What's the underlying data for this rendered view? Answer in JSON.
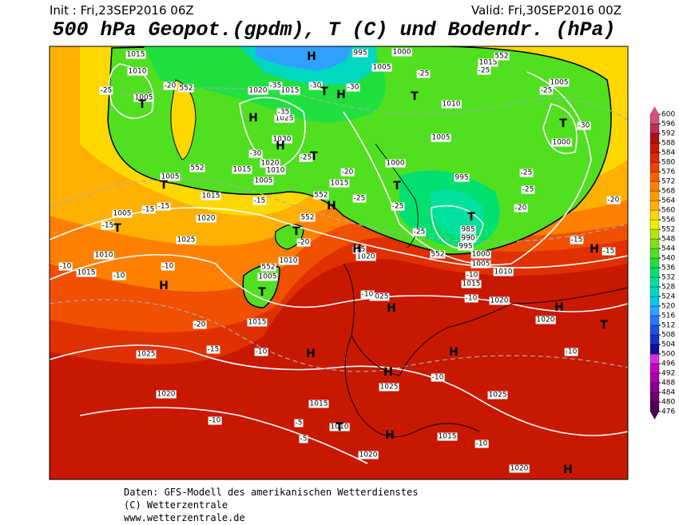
{
  "header": {
    "init": "Init : Fri,23SEP2016 06Z",
    "valid": "Valid: Fri,30SEP2016 00Z",
    "title": "500 hPa Geopot.(gpdm), T (C) und Bodendr. (hPa)"
  },
  "footer": {
    "source": "Daten: GFS-Modell des amerikanischen Wetterdienstes",
    "copyright": "(C) Wetterzentrale",
    "url": "www.wetterzentrale.de"
  },
  "colorbar": {
    "ticks": [
      476,
      480,
      484,
      488,
      492,
      496,
      500,
      504,
      508,
      512,
      516,
      520,
      524,
      528,
      532,
      536,
      540,
      544,
      548,
      552,
      556,
      560,
      564,
      568,
      572,
      576,
      580,
      584,
      588,
      592,
      596,
      600
    ],
    "colors": [
      "#4b0050",
      "#6a0070",
      "#8a0090",
      "#a800b0",
      "#c400c8",
      "#d830e0",
      "#1010a0",
      "#1830c8",
      "#2050e8",
      "#2878ff",
      "#30a0ff",
      "#00c8e8",
      "#00d8c0",
      "#00e0a0",
      "#00e070",
      "#20e040",
      "#50e020",
      "#80e020",
      "#b0e800",
      "#f0f000",
      "#ffd800",
      "#ffb000",
      "#ff9800",
      "#ff8000",
      "#f86000",
      "#f04000",
      "#e02800",
      "#c81800",
      "#b01010",
      "#c03050",
      "#d85080"
    ]
  },
  "isobar_labels": [
    "1015",
    "1010",
    "1005",
    "1020",
    "1015",
    "1025",
    "1030",
    "1020",
    "1010",
    "1015",
    "1005",
    "1005",
    "1015",
    "1020",
    "1005",
    "1025",
    "1010",
    "1015",
    "995",
    "1005",
    "1000",
    "1015",
    "1010",
    "1005",
    "1000",
    "1015",
    "995",
    "1005",
    "1000",
    "985",
    "990",
    "995",
    "1000",
    "1005",
    "1010",
    "1015",
    "1020",
    "1020",
    "1025",
    "1010",
    "1005",
    "1015",
    "1025",
    "1020",
    "1015",
    "1010",
    "1020",
    "1025",
    "1025",
    "1015",
    "1020",
    "1020"
  ],
  "temperature_labels": [
    "-25",
    "-20",
    "-35",
    "-30",
    "-30",
    "-25",
    "-25",
    "-25",
    "-30",
    "-35",
    "-30",
    "-25",
    "-20",
    "-25",
    "-25",
    "-20",
    "-25",
    "-25",
    "-20",
    "-15",
    "-15",
    "-15",
    "-15",
    "-20",
    "-15",
    "-25",
    "-15",
    "-15",
    "-10",
    "-10",
    "-10",
    "-10",
    "-10",
    "-10",
    "-20",
    "-15",
    "-10",
    "-10",
    "-10",
    "-10",
    "-5",
    "-5",
    "-10"
  ],
  "height_labels": [
    "552",
    "552",
    "552",
    "552",
    "552",
    "552",
    "552"
  ],
  "pressure_centers": [
    "H",
    "H",
    "T",
    "H",
    "H",
    "T",
    "T",
    "T",
    "T",
    "H",
    "T",
    "T",
    "H",
    "T",
    "H",
    "T",
    "T",
    "H",
    "H",
    "H",
    "H",
    "T",
    "H",
    "H",
    "T",
    "H",
    "H",
    "T"
  ]
}
